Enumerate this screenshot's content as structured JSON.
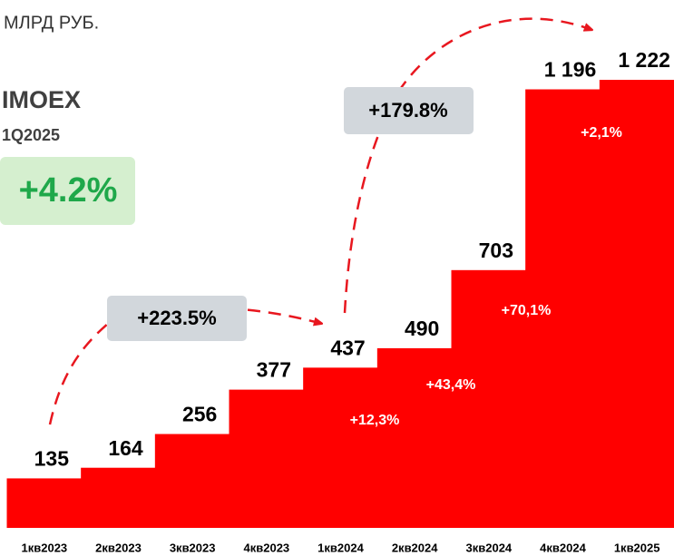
{
  "chart_data": {
    "type": "bar",
    "unit_label": "МЛРД РУБ.",
    "index_name": "IMOEX",
    "period": "1Q2025",
    "index_change": "+4.2%",
    "categories": [
      "1кв2023",
      "2кв2023",
      "3кв2023",
      "4кв2023",
      "1кв2024",
      "2кв2024",
      "3кв2024",
      "4кв2024",
      "1кв2025"
    ],
    "values": [
      135,
      164,
      256,
      377,
      437,
      490,
      703,
      1196,
      1222
    ],
    "value_labels": [
      "135",
      "164",
      "256",
      "377",
      "437",
      "490",
      "703",
      "1 196",
      "1 222"
    ],
    "color": "#ff0000",
    "growth_labels": [
      "+12,3%",
      "+43,4%",
      "+70,1%",
      "+2,1%"
    ],
    "period_changes": [
      "+223.5%",
      "+179.8%"
    ]
  }
}
